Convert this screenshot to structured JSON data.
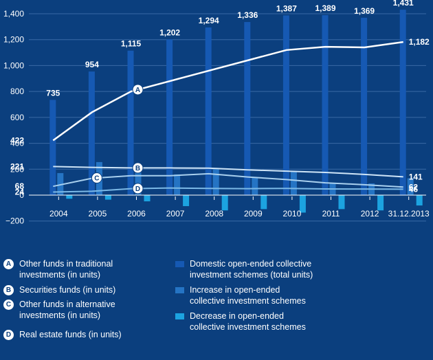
{
  "chart_data": {
    "type": "bar",
    "categories": [
      "2004",
      "2005",
      "2006",
      "2007",
      "2008",
      "2009",
      "2010",
      "2011",
      "2012",
      "31.12.2013"
    ],
    "ylim": [
      -200,
      1400
    ],
    "yticks": [
      "−200",
      "0",
      "200",
      "400",
      "600",
      "800",
      "1,000",
      "1,200",
      "1,400"
    ],
    "ytick_values": [
      -200,
      0,
      200,
      400,
      600,
      800,
      1000,
      1200,
      1400
    ],
    "grid": "horizontal",
    "bar_series": [
      {
        "name": "Domestic open-ended collective investment schemes (total units)",
        "color": "#1659b3",
        "values": [
          735,
          954,
          1115,
          1202,
          1294,
          1336,
          1387,
          1389,
          1369,
          1431
        ],
        "labels": [
          "735",
          "954",
          "1,115",
          "1,202",
          "1,294",
          "1,336",
          "1,387",
          "1,389",
          "1,369",
          "1,431"
        ]
      },
      {
        "name": "Increase in open-ended collective investment schemes",
        "color": "#2574c4",
        "values": [
          170,
          255,
          205,
          160,
          210,
          135,
          180,
          95,
          90,
          130
        ]
      },
      {
        "name": "Decrease in open-ended collective investment schemes",
        "color": "#1ca3e0",
        "values": [
          -28,
          -35,
          -48,
          -85,
          -118,
          -108,
          -135,
          -108,
          -118,
          -80
        ]
      }
    ],
    "line_series": [
      {
        "name": "Other funds in traditional investments (in units)",
        "marker": "A",
        "color": "#ffffff",
        "values": [
          422,
          640,
          800,
          880,
          960,
          1040,
          1120,
          1145,
          1140,
          1182
        ],
        "start_label": "422",
        "end_label": "1,182"
      },
      {
        "name": "Securities funds (in units)",
        "marker": "B",
        "color": "#cfe5f7",
        "values": [
          221,
          214,
          210,
          210,
          208,
          195,
          185,
          175,
          160,
          141
        ],
        "start_label": "221",
        "end_label": "141"
      },
      {
        "name": "Other funds in alternative investments (in units)",
        "marker": "C",
        "color": "#a9d0ee",
        "values": [
          68,
          130,
          150,
          150,
          165,
          140,
          120,
          95,
          80,
          62
        ],
        "start_label": "68",
        "end_label": "62"
      },
      {
        "name": "Real estate funds (in units)",
        "marker": "D",
        "color": "#7cb9e6",
        "values": [
          24,
          30,
          50,
          55,
          52,
          50,
          52,
          48,
          47,
          46
        ],
        "start_label": "24",
        "end_label": "46"
      }
    ]
  },
  "legend": {
    "lines": [
      {
        "marker": "A",
        "text": "Other funds in traditional\ninvestments (in units)"
      },
      {
        "marker": "B",
        "text": "Securities funds (in units)"
      },
      {
        "marker": "C",
        "text": "Other funds in alternative\ninvestments (in units)"
      },
      {
        "marker": "D",
        "text": "Real estate funds (in units)"
      }
    ],
    "bars": [
      {
        "color": "#1659b3",
        "text": "Domestic open-ended collective\ninvestment schemes (total units)"
      },
      {
        "color": "#2574c4",
        "text": "Increase in open-ended\ncollective investment schemes"
      },
      {
        "color": "#1ca3e0",
        "text": "Decrease in open-ended\ncollective investment schemes"
      }
    ]
  }
}
